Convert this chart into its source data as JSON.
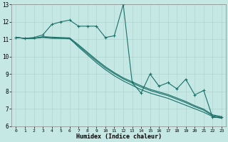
{
  "xlabel": "Humidex (Indice chaleur)",
  "xlim": [
    -0.5,
    23.5
  ],
  "ylim": [
    6,
    13
  ],
  "yticks": [
    6,
    7,
    8,
    9,
    10,
    11,
    12,
    13
  ],
  "xticks": [
    0,
    1,
    2,
    3,
    4,
    5,
    6,
    7,
    8,
    9,
    10,
    11,
    12,
    13,
    14,
    15,
    16,
    17,
    18,
    19,
    20,
    21,
    22,
    23
  ],
  "bg_color": "#c5e8e5",
  "grid_color": "#b0d4d0",
  "line_color": "#1a7068",
  "series": [
    {
      "x": [
        0,
        1,
        2,
        3,
        4,
        5,
        6,
        7,
        8,
        9,
        10,
        11,
        12,
        13,
        14,
        15,
        16,
        17,
        18,
        19,
        20,
        21,
        22,
        23
      ],
      "y": [
        11.1,
        11.05,
        11.1,
        11.25,
        11.85,
        12.0,
        12.1,
        11.75,
        11.75,
        11.75,
        11.1,
        11.2,
        13.0,
        8.5,
        7.9,
        9.0,
        8.3,
        8.5,
        8.15,
        8.7,
        7.8,
        8.05,
        6.5,
        6.5
      ],
      "marker": "+"
    },
    {
      "x": [
        0,
        1,
        2,
        3,
        4,
        5,
        6,
        7,
        8,
        9,
        10,
        11,
        12,
        13,
        14,
        15,
        16,
        17,
        18,
        19,
        20,
        21,
        22,
        23
      ],
      "y": [
        11.1,
        11.05,
        11.05,
        11.1,
        11.05,
        11.05,
        11.05,
        10.55,
        10.1,
        9.65,
        9.25,
        8.9,
        8.6,
        8.35,
        8.1,
        7.9,
        7.75,
        7.6,
        7.4,
        7.2,
        7.0,
        6.8,
        6.55,
        6.45
      ],
      "marker": null
    },
    {
      "x": [
        0,
        1,
        2,
        3,
        4,
        5,
        6,
        7,
        8,
        9,
        10,
        11,
        12,
        13,
        14,
        15,
        16,
        17,
        18,
        19,
        20,
        21,
        22,
        23
      ],
      "y": [
        11.1,
        11.05,
        11.05,
        11.12,
        11.08,
        11.05,
        11.02,
        10.62,
        10.18,
        9.75,
        9.35,
        9.02,
        8.72,
        8.48,
        8.25,
        8.05,
        7.9,
        7.75,
        7.55,
        7.35,
        7.12,
        6.92,
        6.6,
        6.5
      ],
      "marker": null
    },
    {
      "x": [
        0,
        1,
        2,
        3,
        4,
        5,
        6,
        7,
        8,
        9,
        10,
        11,
        12,
        13,
        14,
        15,
        16,
        17,
        18,
        19,
        20,
        21,
        22,
        23
      ],
      "y": [
        11.1,
        11.05,
        11.05,
        11.15,
        11.12,
        11.1,
        11.08,
        10.68,
        10.25,
        9.82,
        9.42,
        9.08,
        8.78,
        8.55,
        8.32,
        8.12,
        7.97,
        7.82,
        7.62,
        7.42,
        7.18,
        6.98,
        6.65,
        6.55
      ],
      "marker": null
    }
  ]
}
